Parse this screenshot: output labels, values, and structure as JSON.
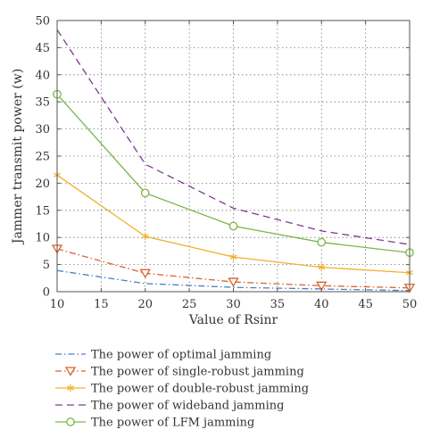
{
  "chart_data": {
    "type": "line",
    "title": "",
    "xlabel": "Value of Rsinr",
    "ylabel": "Jammer transmit power (w)",
    "xlim": [
      10,
      50
    ],
    "ylim": [
      0,
      50
    ],
    "xticks": [
      10,
      15,
      20,
      25,
      30,
      35,
      40,
      45,
      50
    ],
    "yticks": [
      0,
      5,
      10,
      15,
      20,
      25,
      30,
      35,
      40,
      45,
      50
    ],
    "grid": true,
    "legend_position": "below",
    "x": [
      10,
      20,
      30,
      40,
      50
    ],
    "series": [
      {
        "name": "The power of optimal jamming",
        "values": [
          3.9,
          1.5,
          0.8,
          0.5,
          0.2
        ],
        "color": "#4a7fc0",
        "line_style": "dashdot",
        "marker": "none"
      },
      {
        "name": "The power of single-robust jamming",
        "values": [
          7.9,
          3.4,
          1.8,
          1.1,
          0.7
        ],
        "color": "#d9622b",
        "line_style": "dashdot",
        "marker": "triangle-down"
      },
      {
        "name": "The power of double-robust jamming",
        "values": [
          21.5,
          10.2,
          6.4,
          4.5,
          3.5
        ],
        "color": "#f2b02e",
        "line_style": "solid",
        "marker": "asterisk"
      },
      {
        "name": "The power of wideband jamming",
        "values": [
          48.3,
          23.5,
          15.4,
          11.2,
          8.7
        ],
        "color": "#7e3a8e",
        "line_style": "dashed",
        "marker": "none"
      },
      {
        "name": "The power of LFM jamming",
        "values": [
          36.4,
          18.2,
          12.1,
          9.1,
          7.2
        ],
        "color": "#7ab648",
        "line_style": "solid",
        "marker": "circle"
      }
    ]
  }
}
